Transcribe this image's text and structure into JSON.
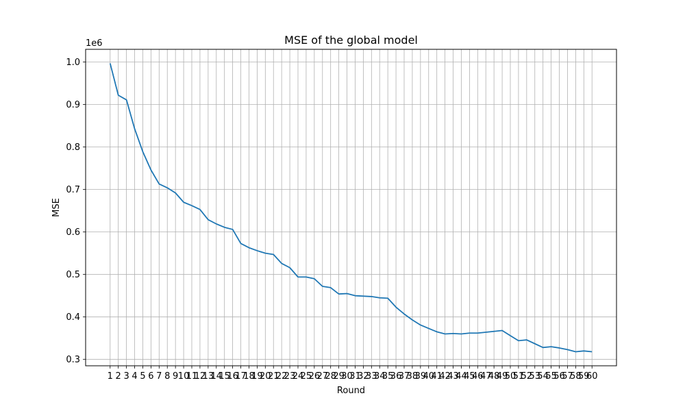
{
  "chart_data": {
    "type": "line",
    "title": "MSE of the global model",
    "xlabel": "Round",
    "ylabel": "MSE",
    "y_offset_label": "1e6",
    "grid": true,
    "line_color": "#1f77b4",
    "xlim": [
      -2,
      63
    ],
    "ylim": [
      0.285,
      1.03
    ],
    "y_ticks": [
      0.3,
      0.4,
      0.5,
      0.6,
      0.7,
      0.8,
      0.9,
      1.0
    ],
    "y_tick_labels": [
      "0.3",
      "0.4",
      "0.5",
      "0.6",
      "0.7",
      "0.8",
      "0.9",
      "1.0"
    ],
    "x": [
      1,
      2,
      3,
      4,
      5,
      6,
      7,
      8,
      9,
      10,
      11,
      12,
      13,
      14,
      15,
      16,
      17,
      18,
      19,
      20,
      21,
      22,
      23,
      24,
      25,
      26,
      27,
      28,
      29,
      30,
      31,
      32,
      33,
      34,
      35,
      36,
      37,
      38,
      39,
      40,
      41,
      42,
      43,
      44,
      45,
      46,
      47,
      48,
      49,
      50,
      51,
      52,
      53,
      54,
      55,
      56,
      57,
      58,
      59,
      60
    ],
    "x_tick_labels": [
      "1",
      "2",
      "3",
      "4",
      "5",
      "6",
      "7",
      "8",
      "9",
      "10",
      "11",
      "12",
      "13",
      "14",
      "15",
      "16",
      "17",
      "18",
      "19",
      "20",
      "21",
      "22",
      "23",
      "24",
      "25",
      "26",
      "27",
      "28",
      "29",
      "30",
      "31",
      "32",
      "33",
      "34",
      "35",
      "36",
      "37",
      "38",
      "39",
      "40",
      "41",
      "42",
      "43",
      "44",
      "45",
      "46",
      "47",
      "48",
      "49",
      "50",
      "51",
      "52",
      "53",
      "54",
      "55",
      "56",
      "57",
      "58",
      "59",
      "60"
    ],
    "series": [
      {
        "values": [
          0.997,
          0.922,
          0.911,
          0.843,
          0.789,
          0.746,
          0.713,
          0.704,
          0.692,
          0.67,
          0.662,
          0.653,
          0.629,
          0.619,
          0.611,
          0.606,
          0.573,
          0.563,
          0.556,
          0.55,
          0.547,
          0.526,
          0.516,
          0.494,
          0.494,
          0.49,
          0.472,
          0.469,
          0.454,
          0.455,
          0.45,
          0.449,
          0.448,
          0.445,
          0.444,
          0.423,
          0.407,
          0.393,
          0.381,
          0.373,
          0.365,
          0.36,
          0.361,
          0.36,
          0.362,
          0.362,
          0.364,
          0.366,
          0.368,
          0.356,
          0.344,
          0.346,
          0.337,
          0.328,
          0.33,
          0.327,
          0.323,
          0.318,
          0.32,
          0.318
        ]
      }
    ]
  }
}
